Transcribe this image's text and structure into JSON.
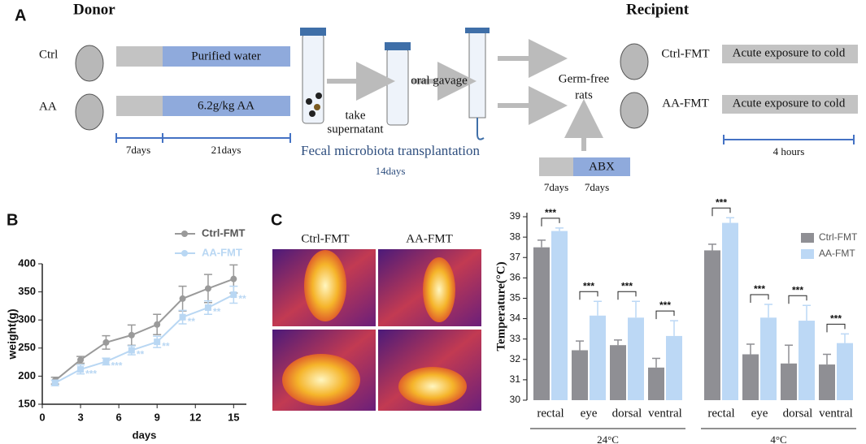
{
  "panels": [
    "A",
    "B",
    "C"
  ],
  "diagram": {
    "donor": "Donor",
    "recipient": "Recipient",
    "donor_groups": [
      "Ctrl",
      "AA"
    ],
    "treatments": [
      "Purified water",
      "6.2g/kg AA"
    ],
    "donor_periods": [
      "7days",
      "21days"
    ],
    "step1": [
      "take",
      "supernatant"
    ],
    "step2": "oral gavage",
    "fmt": "Fecal microbiota transplantation",
    "fmt_period": "14days",
    "germ_free": [
      "Germ-free",
      "rats"
    ],
    "abx": "ABX",
    "abx_periods": [
      "7days",
      "7days"
    ],
    "recipient_groups": [
      "Ctrl-FMT",
      "AA-FMT"
    ],
    "exposure": [
      "Acute exposure to cold",
      "Acute exposure to cold"
    ],
    "exposure_period": "4 hours"
  },
  "photos": {
    "labels": [
      "Ctrl-FMT",
      "AA-FMT"
    ]
  },
  "chart_data": [
    {
      "type": "line",
      "xlabel": "days",
      "ylabel": "weight(g)",
      "x": [
        1,
        3,
        5,
        7,
        9,
        11,
        13,
        15
      ],
      "xlim": [
        0,
        16
      ],
      "xticks": [
        0,
        3,
        6,
        9,
        12,
        15
      ],
      "ylim": [
        150,
        400
      ],
      "yticks": [
        150,
        200,
        250,
        300,
        350,
        400
      ],
      "series": [
        {
          "name": "Ctrl-FMT",
          "color": "#9a9a9a",
          "values": [
            192,
            229,
            260,
            273,
            292,
            338,
            356,
            373
          ],
          "errors": [
            6,
            6,
            12,
            18,
            18,
            22,
            25,
            25
          ]
        },
        {
          "name": "AA-FMT",
          "color": "#b9d7f3",
          "values": [
            188,
            212,
            226,
            246,
            261,
            305,
            322,
            345
          ],
          "errors": [
            5,
            8,
            6,
            8,
            10,
            12,
            12,
            15
          ],
          "significance": [
            null,
            "***",
            "***",
            "**",
            "**",
            "**",
            "**",
            "**"
          ]
        }
      ]
    },
    {
      "type": "bar",
      "ylabel": "Temperature(°C)",
      "categories": [
        "rectal",
        "eye",
        "dorsal",
        "ventral",
        "rectal",
        "eye",
        "dorsal",
        "ventral"
      ],
      "groups": [
        "24°C",
        "4°C"
      ],
      "ylim": [
        30,
        39.2
      ],
      "yticks": [
        30,
        31,
        32,
        33,
        34,
        35,
        36,
        37,
        38,
        39
      ],
      "legend": "upper right",
      "series": [
        {
          "name": "Ctrl-FMT",
          "color": "#8f8f94",
          "values": [
            37.5,
            32.45,
            32.7,
            31.6,
            37.35,
            32.25,
            31.8,
            31.75
          ],
          "errors": [
            0.35,
            0.45,
            0.25,
            0.45,
            0.3,
            0.5,
            0.9,
            0.5
          ]
        },
        {
          "name": "AA-FMT",
          "color": "#bcd8f5",
          "values": [
            38.3,
            34.15,
            34.05,
            33.15,
            38.7,
            34.05,
            33.9,
            32.8
          ],
          "errors": [
            0.15,
            0.7,
            0.8,
            0.75,
            0.25,
            0.65,
            0.75,
            0.45
          ]
        }
      ],
      "significance": [
        "***",
        "***",
        "***",
        "***",
        "***",
        "***",
        "***",
        "***"
      ]
    }
  ]
}
